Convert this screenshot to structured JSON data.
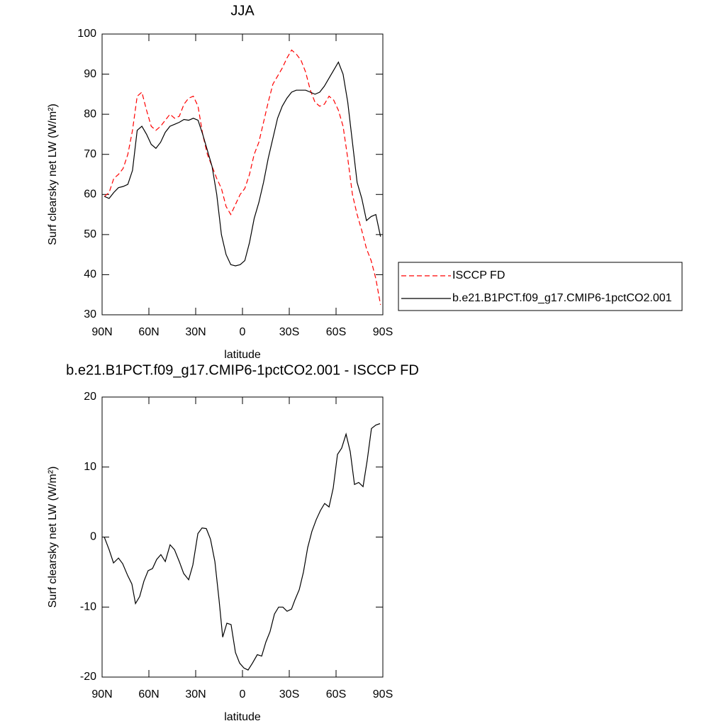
{
  "chart_data": [
    {
      "type": "line",
      "title": "JJA",
      "xlabel": "latitude",
      "ylabel": "Surf clearsky net LW (W/m²)",
      "x": [
        88.5,
        85.5,
        82.5,
        79.5,
        76.5,
        73.5,
        70.5,
        67.5,
        64.5,
        61.5,
        58.5,
        55.5,
        52.5,
        49.5,
        46.5,
        43.5,
        40.5,
        37.5,
        34.5,
        31.5,
        28.5,
        25.5,
        22.5,
        19.5,
        16.5,
        13.5,
        10.5,
        7.5,
        4.5,
        1.5,
        -1.5,
        -4.5,
        -7.5,
        -10.5,
        -13.5,
        -16.5,
        -19.5,
        -22.5,
        -25.5,
        -28.5,
        -31.5,
        -34.5,
        -37.5,
        -40.5,
        -43.5,
        -46.5,
        -49.5,
        -52.5,
        -55.5,
        -58.5,
        -61.5,
        -64.5,
        -67.5,
        -70.5,
        -73.5,
        -76.5,
        -79.5,
        -82.5,
        -85.5,
        -88.5
      ],
      "series": [
        {
          "name": "ISCCP FD",
          "color": "#ff0000",
          "line_style": "dashed",
          "values": [
            59.5,
            60.5,
            64,
            65,
            66.5,
            70,
            76,
            84.5,
            85.5,
            81,
            77,
            76,
            77,
            78.5,
            80,
            79,
            79.5,
            82.5,
            84,
            84.5,
            82,
            75,
            70,
            67,
            64,
            61.5,
            57,
            55,
            57.5,
            60,
            61.5,
            65,
            70,
            73,
            78,
            83,
            87.5,
            89.5,
            91.5,
            94,
            96,
            95,
            93.5,
            90.5,
            86,
            83,
            82,
            82.5,
            84.5,
            83.5,
            81,
            77,
            69,
            60,
            55,
            51,
            46.5,
            43.5,
            39,
            32.5
          ]
        },
        {
          "name": "b.e21.B1PCT.f09_g17.CMIP6-1pctCO2.001",
          "color": "#000000",
          "line_style": "solid",
          "values": [
            59.5,
            59,
            60.5,
            61.7,
            62,
            62.5,
            66,
            76,
            77,
            75,
            72.5,
            71.5,
            73,
            75.5,
            77,
            77.5,
            78,
            78.7,
            78.5,
            79,
            78.5,
            75,
            71,
            67,
            60,
            50,
            45,
            42.5,
            42.2,
            42.5,
            43.5,
            48,
            54,
            58,
            63,
            69,
            74,
            79,
            82,
            84,
            85.5,
            86,
            86,
            86,
            85.5,
            85,
            85.5,
            87,
            89,
            91,
            93,
            90,
            83,
            73,
            63,
            59,
            53.5,
            54.5,
            55,
            49.5
          ]
        }
      ],
      "xlim": [
        90,
        -90
      ],
      "ylim": [
        30,
        100
      ],
      "xticks": [
        {
          "value": 90,
          "label": "90N"
        },
        {
          "value": 60,
          "label": "60N"
        },
        {
          "value": 30,
          "label": "30N"
        },
        0,
        {
          "value": -30,
          "label": "30S"
        },
        {
          "value": -60,
          "label": "60S"
        },
        {
          "value": -90,
          "label": "90S"
        }
      ],
      "yticks": [
        30,
        40,
        50,
        60,
        70,
        80,
        90,
        100
      ],
      "legend": "right"
    },
    {
      "type": "line",
      "title": "b.e21.B1PCT.f09_g17.CMIP6-1pctCO2.001 - ISCCP FD",
      "xlabel": "latitude",
      "ylabel": "Surf clearsky net LW (W/m²)",
      "x": [
        88.6,
        85.5,
        82.7,
        79.5,
        76.8,
        73.6,
        70.9,
        68.6,
        65.9,
        63.2,
        60.5,
        57.7,
        55.0,
        52.3,
        49.5,
        46.4,
        43.6,
        40.5,
        37.7,
        34.5,
        31.8,
        28.6,
        25.9,
        23.2,
        20.5,
        17.7,
        15.0,
        12.7,
        10.0,
        7.3,
        4.5,
        1.8,
        -0.9,
        -3.6,
        -6.4,
        -9.5,
        -12.3,
        -15.0,
        -17.7,
        -20.5,
        -23.2,
        -25.9,
        -28.6,
        -31.4,
        -33.6,
        -36.4,
        -39.1,
        -41.8,
        -44.5,
        -47.3,
        -50.0,
        -52.7,
        -55.5,
        -58.2,
        -60.9,
        -63.6,
        -66.4,
        -69.1,
        -71.8,
        -74.5,
        -77.3,
        -80.0,
        -82.7,
        -85.5,
        -88.2
      ],
      "values": [
        0,
        -1.8,
        -3.7,
        -3,
        -3.8,
        -5.5,
        -6.7,
        -9.5,
        -8.5,
        -6.3,
        -4.8,
        -4.5,
        -3.2,
        -2.5,
        -3.5,
        -1.1,
        -1.8,
        -3.5,
        -5.2,
        -6.1,
        -4,
        0.5,
        1.3,
        1.2,
        -0.3,
        -3.5,
        -9,
        -14.3,
        -12.3,
        -12.5,
        -16.5,
        -18,
        -18.7,
        -19,
        -18,
        -16.8,
        -17,
        -15,
        -13.5,
        -11,
        -10,
        -10,
        -10.6,
        -10.3,
        -9,
        -7.5,
        -5,
        -1.5,
        0.8,
        2.5,
        3.8,
        4.8,
        4.3,
        7,
        11.8,
        12.7,
        14.7,
        12.2,
        7.5,
        7.8,
        7.2,
        11,
        15.5,
        16,
        16.2
      ],
      "color": "#000000",
      "xlim": [
        90,
        -90
      ],
      "ylim": [
        -20,
        20
      ],
      "xticks": [
        {
          "value": 90,
          "label": "90N"
        },
        {
          "value": 60,
          "label": "60N"
        },
        {
          "value": 30,
          "label": "30N"
        },
        0,
        {
          "value": -30,
          "label": "30S"
        },
        {
          "value": -60,
          "label": "60S"
        },
        {
          "value": -90,
          "label": "90S"
        }
      ],
      "yticks": [
        -20,
        -10,
        0,
        10,
        20
      ]
    }
  ]
}
